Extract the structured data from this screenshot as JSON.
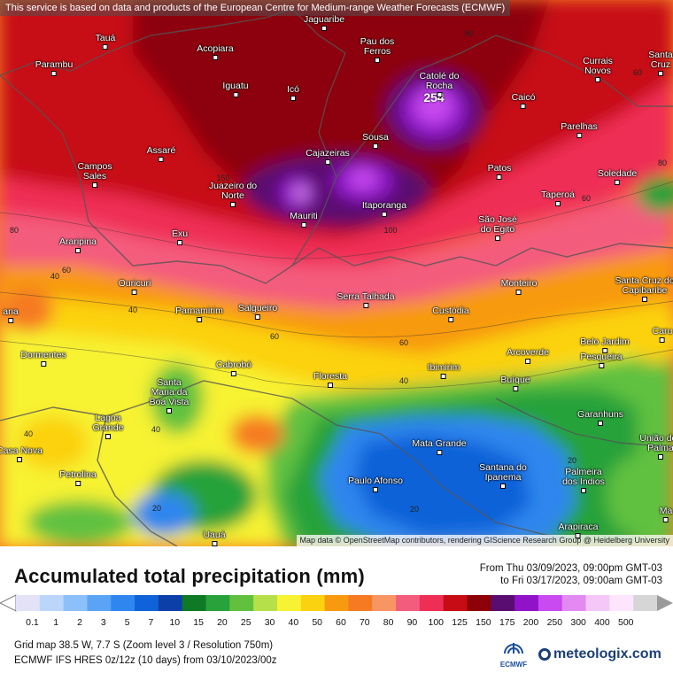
{
  "header_notice": "This service is based on data and products of the European Centre for Medium-range Weather Forecasts (ECMWF)",
  "map_attribution": "Map data © OpenStreetMap contributors, rendering GIScience Research Group @ Heidelberg University",
  "title": "Accumulated total precipitation (mm)",
  "period": {
    "from": "From Thu 03/09/2023, 09:00pm GMT-03",
    "to": "to Fri 03/17/2023, 09:00am GMT-03"
  },
  "max_value": "254",
  "cities": [
    {
      "name": "Tauá"
    },
    {
      "name": "Acopiara"
    },
    {
      "name": "Jaguaribe"
    },
    {
      "name": "Pau dos Ferros"
    },
    {
      "name": "Currais Novos"
    },
    {
      "name": "Santa Cruz"
    },
    {
      "name": "Parambu"
    },
    {
      "name": "Iguatu"
    },
    {
      "name": "Icó"
    },
    {
      "name": "Catolé do Rocha"
    },
    {
      "name": "Caicó"
    },
    {
      "name": "Parelhas"
    },
    {
      "name": "Sousa"
    },
    {
      "name": "Assaré"
    },
    {
      "name": "Cajazeiras"
    },
    {
      "name": "Campos Sales"
    },
    {
      "name": "Patos"
    },
    {
      "name": "Juazeiro do Norte"
    },
    {
      "name": "Soledade"
    },
    {
      "name": "Taperoá"
    },
    {
      "name": "Mauriti"
    },
    {
      "name": "Itaporanga"
    },
    {
      "name": "São José do Egito"
    },
    {
      "name": "Araripina"
    },
    {
      "name": "Exu"
    },
    {
      "name": "Ouricuri"
    },
    {
      "name": "Monteiro"
    },
    {
      "name": "Santa Cruz do Capibaribe"
    },
    {
      "name": "Serra Talhada"
    },
    {
      "name": "Parnamirim"
    },
    {
      "name": "Salgueiro"
    },
    {
      "name": "Custódia"
    },
    {
      "name": "Belo Jardim"
    },
    {
      "name": "Dormentes"
    },
    {
      "name": "Arcoverde"
    },
    {
      "name": "Pesqueira"
    },
    {
      "name": "Cabrobó"
    },
    {
      "name": "Ibimirim"
    },
    {
      "name": "Santa Maria da Boa Vista"
    },
    {
      "name": "Floresta"
    },
    {
      "name": "Buíque"
    },
    {
      "name": "Garanhuns"
    },
    {
      "name": "Lagoa Grande"
    },
    {
      "name": "Mata Grande"
    },
    {
      "name": "União dos Palma"
    },
    {
      "name": "Santana do Ipanema"
    },
    {
      "name": "Petrolina"
    },
    {
      "name": "Paulo Afonso"
    },
    {
      "name": "Palmeira dos Índios"
    },
    {
      "name": "Arapiraca"
    },
    {
      "name": "Uauá"
    },
    {
      "name": "Casa Nova"
    },
    {
      "name": "Caru"
    },
    {
      "name": "Ma"
    },
    {
      "name": "ana"
    }
  ],
  "contour_labels": [
    "80",
    "80",
    "60",
    "60",
    "60",
    "40",
    "40",
    "60",
    "40",
    "60",
    "100",
    "150",
    "80",
    "40",
    "20",
    "20",
    "20",
    "40"
  ],
  "scale": {
    "ticks": [
      "0.1",
      "1",
      "2",
      "3",
      "5",
      "7",
      "10",
      "15",
      "20",
      "25",
      "30",
      "40",
      "50",
      "60",
      "70",
      "80",
      "90",
      "100",
      "125",
      "150",
      "175",
      "200",
      "250",
      "300",
      "400",
      "500"
    ],
    "colors": [
      "#e4e2f6",
      "#bcd6fb",
      "#8cc0fa",
      "#5ba4f5",
      "#2f86ee",
      "#0f62d8",
      "#0d3fa8",
      "#0e7a25",
      "#28a23a",
      "#61c13f",
      "#b6e04a",
      "#f7f233",
      "#fbd20f",
      "#f89a10",
      "#f67a22",
      "#f79663",
      "#f45c7d",
      "#ef2e55",
      "#c70c15",
      "#8d0008",
      "#5a0d70",
      "#9013c9",
      "#c84af0",
      "#e28af2",
      "#f5c7f8",
      "#fde6fd",
      "#d6d6d6"
    ]
  },
  "info": {
    "line1": "Grid map 38.5 W, 7.7 S (Zoom level 3 / Resolution 750m)",
    "line2": "ECMWF IFS HRES 0z/12z (10 days) from 03/10/2023/00z"
  },
  "logos": {
    "ecmwf": "ECMWF",
    "meteologix": "meteologix.com"
  }
}
